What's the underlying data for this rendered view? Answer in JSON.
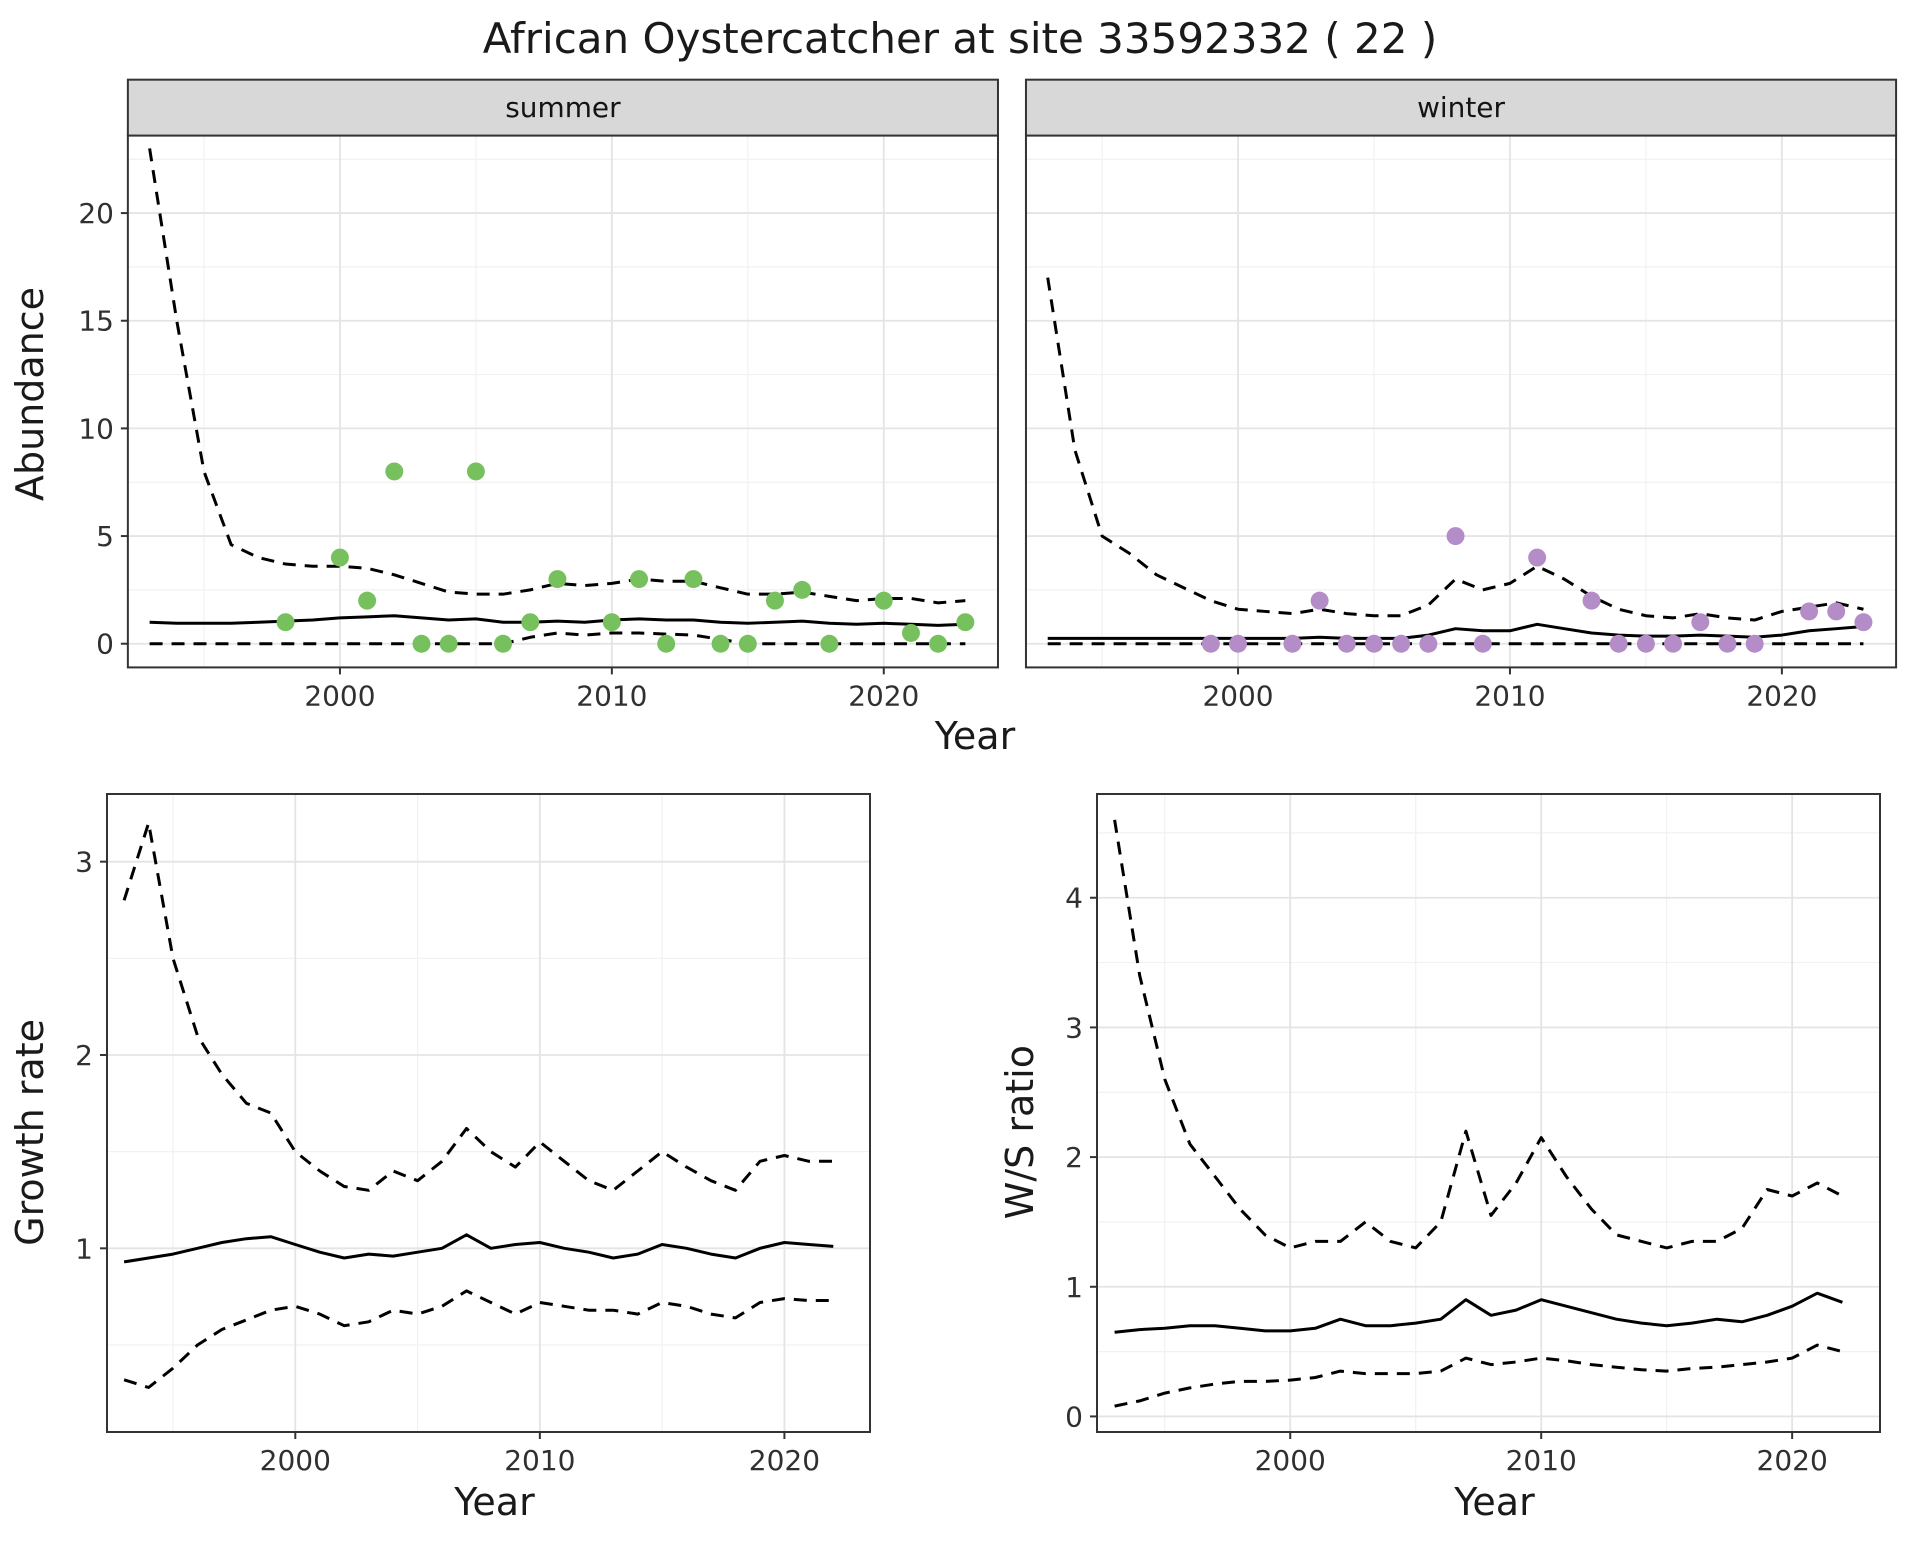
{
  "title": "African Oystercatcher at site 33592332 ( 22 )",
  "colors": {
    "summer_point": "#76c05e",
    "winter_point": "#b48cc8",
    "fit_line": "#000000",
    "ci_line": "#000000",
    "strip_bg": "#d8d8d8",
    "panel_border": "#333333",
    "grid_major": "#e4e4e4",
    "grid_minor": "#f1f1f1"
  },
  "chart_data": [
    {
      "id": "abundance-summer",
      "type": "line+scatter",
      "facet": "summer",
      "xlabel": "Year",
      "ylabel": "Abundance",
      "xlim": [
        1992.2,
        2024.2
      ],
      "ylim": [
        -1.1,
        23.6
      ],
      "x_ticks": [
        2000,
        2010,
        2020
      ],
      "y_ticks": [
        0,
        5,
        10,
        15,
        20
      ],
      "grid": true,
      "legend": "none",
      "years": [
        1993,
        1994,
        1995,
        1996,
        1997,
        1998,
        1999,
        2000,
        2001,
        2002,
        2003,
        2004,
        2005,
        2006,
        2007,
        2008,
        2009,
        2010,
        2011,
        2012,
        2013,
        2014,
        2015,
        2016,
        2017,
        2018,
        2019,
        2020,
        2021,
        2022,
        2023
      ],
      "series": [
        {
          "name": "upper-credible",
          "style": "dashed",
          "values": [
            23,
            15,
            8,
            4.6,
            4,
            3.7,
            3.6,
            3.6,
            3.5,
            3.2,
            2.8,
            2.4,
            2.3,
            2.3,
            2.5,
            2.8,
            2.7,
            2.8,
            3,
            2.9,
            2.9,
            2.6,
            2.3,
            2.3,
            2.4,
            2.2,
            2,
            2.1,
            2.1,
            1.9,
            2
          ]
        },
        {
          "name": "median-fit",
          "style": "solid",
          "values": [
            1,
            0.95,
            0.95,
            0.95,
            1,
            1.05,
            1.1,
            1.2,
            1.25,
            1.3,
            1.2,
            1.1,
            1.15,
            1,
            1,
            1.05,
            1,
            1.1,
            1.15,
            1.1,
            1.1,
            1,
            0.95,
            1,
            1.05,
            0.95,
            0.9,
            0.95,
            0.9,
            0.85,
            0.9
          ]
        },
        {
          "name": "lower-credible",
          "style": "dashed",
          "values": [
            0,
            0,
            0,
            0,
            0,
            0,
            0,
            0,
            0,
            0,
            0,
            0,
            0,
            0,
            0.3,
            0.5,
            0.4,
            0.5,
            0.5,
            0.45,
            0.4,
            0.2,
            0,
            0,
            0,
            0,
            0,
            0,
            0,
            0,
            0
          ]
        }
      ],
      "points": {
        "name": "summer-observation",
        "color": "#76c05e",
        "x": [
          1998,
          2000,
          2001,
          2002,
          2003,
          2004,
          2005,
          2006,
          2007,
          2008,
          2010,
          2011,
          2012,
          2013,
          2014,
          2015,
          2016,
          2017,
          2018,
          2020,
          2021,
          2022,
          2023
        ],
        "y": [
          1,
          4,
          2,
          8,
          0,
          0,
          8,
          0,
          1,
          3,
          1,
          3,
          0,
          3,
          0,
          0,
          2,
          2.5,
          0,
          2,
          0.5,
          0,
          1
        ]
      }
    },
    {
      "id": "abundance-winter",
      "type": "line+scatter",
      "facet": "winter",
      "xlabel": "Year",
      "ylabel": "",
      "xlim": [
        1992.2,
        2024.2
      ],
      "ylim": [
        -1.1,
        23.6
      ],
      "x_ticks": [
        2000,
        2010,
        2020
      ],
      "y_ticks": [
        0,
        5,
        10,
        15,
        20
      ],
      "grid": true,
      "legend": "none",
      "years": [
        1993,
        1994,
        1995,
        1996,
        1997,
        1998,
        1999,
        2000,
        2001,
        2002,
        2003,
        2004,
        2005,
        2006,
        2007,
        2008,
        2009,
        2010,
        2011,
        2012,
        2013,
        2014,
        2015,
        2016,
        2017,
        2018,
        2019,
        2020,
        2021,
        2022,
        2023
      ],
      "series": [
        {
          "name": "upper-credible",
          "style": "dashed",
          "values": [
            17,
            9,
            5,
            4.2,
            3.2,
            2.6,
            2,
            1.6,
            1.5,
            1.4,
            1.6,
            1.4,
            1.3,
            1.3,
            1.8,
            3,
            2.5,
            2.8,
            3.6,
            3,
            2.2,
            1.6,
            1.3,
            1.2,
            1.4,
            1.2,
            1.1,
            1.5,
            1.7,
            1.9,
            1.6
          ]
        },
        {
          "name": "median-fit",
          "style": "solid",
          "values": [
            0.25,
            0.25,
            0.25,
            0.25,
            0.25,
            0.25,
            0.25,
            0.25,
            0.25,
            0.25,
            0.3,
            0.25,
            0.25,
            0.25,
            0.4,
            0.7,
            0.6,
            0.6,
            0.9,
            0.7,
            0.5,
            0.4,
            0.35,
            0.35,
            0.4,
            0.35,
            0.3,
            0.4,
            0.6,
            0.7,
            0.8
          ]
        },
        {
          "name": "lower-credible",
          "style": "dashed",
          "values": [
            0,
            0,
            0,
            0,
            0,
            0,
            0,
            0,
            0,
            0,
            0,
            0,
            0,
            0,
            0,
            0,
            0,
            0,
            0,
            0,
            0,
            0,
            0,
            0,
            0,
            0,
            0,
            0,
            0,
            0,
            0
          ]
        }
      ],
      "points": {
        "name": "winter-observation",
        "color": "#b48cc8",
        "x": [
          1999,
          2000,
          2002,
          2003,
          2004,
          2005,
          2006,
          2007,
          2008,
          2009,
          2011,
          2013,
          2014,
          2015,
          2016,
          2017,
          2018,
          2019,
          2021,
          2022,
          2023
        ],
        "y": [
          0,
          0,
          0,
          2,
          0,
          0,
          0,
          0,
          5,
          0,
          4,
          2,
          0,
          0,
          0,
          1,
          0,
          0,
          1.5,
          1.5,
          1
        ]
      }
    },
    {
      "id": "growth-rate",
      "type": "line",
      "facet": "",
      "xlabel": "Year",
      "ylabel": "Growth rate",
      "xlim": [
        1992.3,
        2023.5
      ],
      "ylim": [
        0.05,
        3.35
      ],
      "x_ticks": [
        2000,
        2010,
        2020
      ],
      "y_ticks": [
        1,
        2,
        3
      ],
      "grid": true,
      "legend": "none",
      "years": [
        1993,
        1994,
        1995,
        1996,
        1997,
        1998,
        1999,
        2000,
        2001,
        2002,
        2003,
        2004,
        2005,
        2006,
        2007,
        2008,
        2009,
        2010,
        2011,
        2012,
        2013,
        2014,
        2015,
        2016,
        2017,
        2018,
        2019,
        2020,
        2021,
        2022
      ],
      "series": [
        {
          "name": "upper-credible",
          "style": "dashed",
          "values": [
            2.8,
            3.2,
            2.5,
            2.1,
            1.9,
            1.75,
            1.7,
            1.5,
            1.4,
            1.32,
            1.3,
            1.4,
            1.35,
            1.45,
            1.62,
            1.5,
            1.42,
            1.55,
            1.45,
            1.35,
            1.3,
            1.4,
            1.5,
            1.42,
            1.35,
            1.3,
            1.45,
            1.48,
            1.45,
            1.45
          ]
        },
        {
          "name": "median-fit",
          "style": "solid",
          "values": [
            0.93,
            0.95,
            0.97,
            1,
            1.03,
            1.05,
            1.06,
            1.02,
            0.98,
            0.95,
            0.97,
            0.96,
            0.98,
            1,
            1.07,
            1,
            1.02,
            1.03,
            1,
            0.98,
            0.95,
            0.97,
            1.02,
            1,
            0.97,
            0.95,
            1,
            1.03,
            1.02,
            1.01
          ]
        },
        {
          "name": "lower-credible",
          "style": "dashed",
          "values": [
            0.32,
            0.28,
            0.38,
            0.5,
            0.58,
            0.63,
            0.68,
            0.7,
            0.66,
            0.6,
            0.62,
            0.68,
            0.66,
            0.7,
            0.78,
            0.72,
            0.66,
            0.72,
            0.7,
            0.68,
            0.68,
            0.66,
            0.72,
            0.7,
            0.66,
            0.64,
            0.72,
            0.74,
            0.73,
            0.73
          ]
        }
      ]
    },
    {
      "id": "ws-ratio",
      "type": "line",
      "facet": "",
      "xlabel": "Year",
      "ylabel": "W/S ratio",
      "xlim": [
        1992.3,
        2023.5
      ],
      "ylim": [
        -0.12,
        4.8
      ],
      "x_ticks": [
        2000,
        2010,
        2020
      ],
      "y_ticks": [
        0,
        1,
        2,
        3,
        4
      ],
      "grid": true,
      "legend": "none",
      "years": [
        1993,
        1994,
        1995,
        1996,
        1997,
        1998,
        1999,
        2000,
        2001,
        2002,
        2003,
        2004,
        2005,
        2006,
        2007,
        2008,
        2009,
        2010,
        2011,
        2012,
        2013,
        2014,
        2015,
        2016,
        2017,
        2018,
        2019,
        2020,
        2021,
        2022
      ],
      "series": [
        {
          "name": "upper-credible",
          "style": "dashed",
          "values": [
            4.6,
            3.4,
            2.6,
            2.1,
            1.85,
            1.6,
            1.4,
            1.3,
            1.35,
            1.35,
            1.5,
            1.35,
            1.3,
            1.5,
            2.2,
            1.55,
            1.8,
            2.15,
            1.85,
            1.6,
            1.4,
            1.35,
            1.3,
            1.35,
            1.35,
            1.45,
            1.75,
            1.7,
            1.8,
            1.7
          ]
        },
        {
          "name": "median-fit",
          "style": "solid",
          "values": [
            0.65,
            0.67,
            0.68,
            0.7,
            0.7,
            0.68,
            0.66,
            0.66,
            0.68,
            0.75,
            0.7,
            0.7,
            0.72,
            0.75,
            0.9,
            0.78,
            0.82,
            0.9,
            0.85,
            0.8,
            0.75,
            0.72,
            0.7,
            0.72,
            0.75,
            0.73,
            0.78,
            0.85,
            0.95,
            0.88
          ]
        },
        {
          "name": "lower-credible",
          "style": "dashed",
          "values": [
            0.08,
            0.12,
            0.18,
            0.22,
            0.25,
            0.27,
            0.27,
            0.28,
            0.3,
            0.35,
            0.33,
            0.33,
            0.33,
            0.35,
            0.45,
            0.4,
            0.42,
            0.45,
            0.43,
            0.4,
            0.38,
            0.36,
            0.35,
            0.37,
            0.38,
            0.4,
            0.42,
            0.45,
            0.55,
            0.5
          ]
        }
      ]
    }
  ]
}
